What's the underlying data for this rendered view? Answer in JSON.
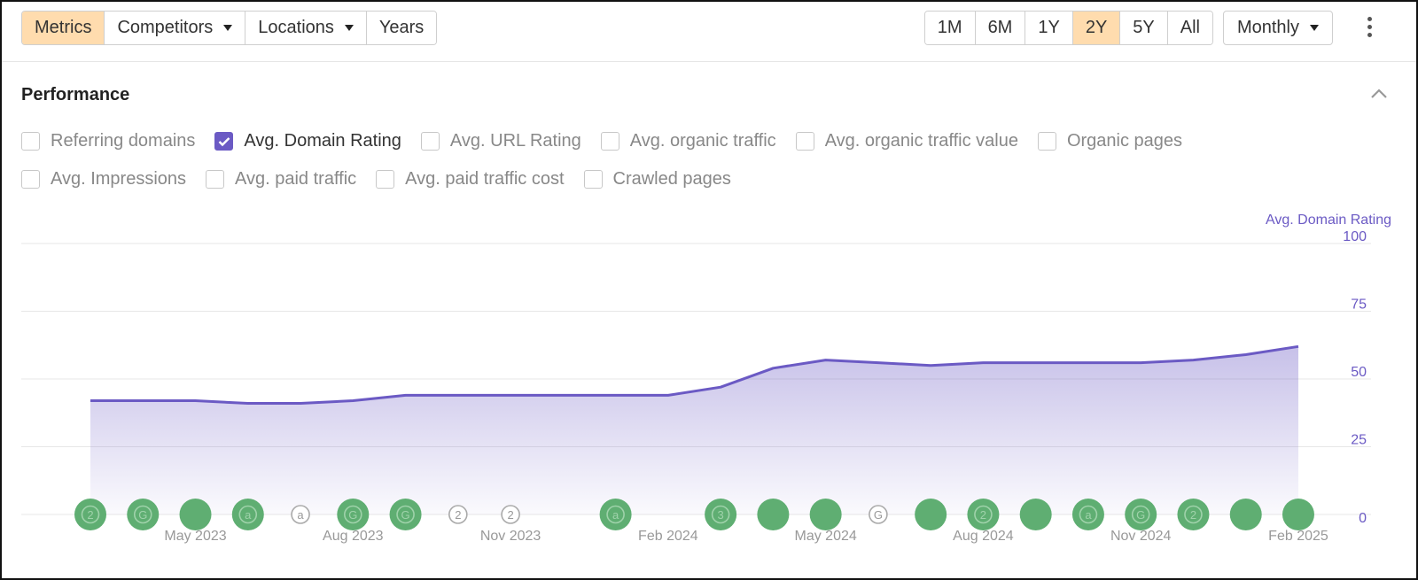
{
  "toolbar": {
    "left_buttons": [
      {
        "label": "Metrics",
        "active": true,
        "dropdown": false
      },
      {
        "label": "Competitors",
        "active": false,
        "dropdown": true
      },
      {
        "label": "Locations",
        "active": false,
        "dropdown": true
      },
      {
        "label": "Years",
        "active": false,
        "dropdown": false
      }
    ],
    "ranges": [
      {
        "label": "1M",
        "active": false
      },
      {
        "label": "6M",
        "active": false
      },
      {
        "label": "1Y",
        "active": false
      },
      {
        "label": "2Y",
        "active": true
      },
      {
        "label": "5Y",
        "active": false
      },
      {
        "label": "All",
        "active": false
      }
    ],
    "interval": "Monthly"
  },
  "section": {
    "title": "Performance"
  },
  "metrics": {
    "row1": [
      {
        "label": "Referring domains",
        "checked": false
      },
      {
        "label": "Avg. Domain Rating",
        "checked": true
      },
      {
        "label": "Avg. URL Rating",
        "checked": false
      },
      {
        "label": "Avg. organic traffic",
        "checked": false
      },
      {
        "label": "Avg. organic traffic value",
        "checked": false
      },
      {
        "label": "Organic pages",
        "checked": false
      }
    ],
    "row2": [
      {
        "label": "Avg. Impressions",
        "checked": false
      },
      {
        "label": "Avg. paid traffic",
        "checked": false
      },
      {
        "label": "Avg. paid traffic cost",
        "checked": false
      },
      {
        "label": "Crawled pages",
        "checked": false
      }
    ]
  },
  "colors": {
    "accent": "#6b5ac4",
    "active_button": "#ffdcae",
    "marker_green": "#5fae72"
  },
  "chart_data": {
    "type": "area",
    "ylabel": "Avg. Domain Rating",
    "ylim": [
      0,
      100
    ],
    "yticks": [
      0,
      25,
      50,
      75,
      100
    ],
    "x": [
      "2023-03",
      "2023-04",
      "2023-05",
      "2023-06",
      "2023-07",
      "2023-08",
      "2023-09",
      "2023-10",
      "2023-11",
      "2023-12",
      "2024-01",
      "2024-02",
      "2024-03",
      "2024-04",
      "2024-05",
      "2024-06",
      "2024-07",
      "2024-08",
      "2024-09",
      "2024-10",
      "2024-11",
      "2024-12",
      "2025-01",
      "2025-02"
    ],
    "series": [
      {
        "values": [
          42,
          42,
          42,
          41,
          41,
          42,
          44,
          44,
          44,
          44,
          44,
          44,
          47,
          54,
          57,
          56,
          55,
          56,
          56,
          56,
          56,
          57,
          59,
          62
        ]
      }
    ],
    "xtick_labels": [
      {
        "date": "2023-05",
        "label": "May 2023"
      },
      {
        "date": "2023-08",
        "label": "Aug 2023"
      },
      {
        "date": "2023-11",
        "label": "Nov 2023"
      },
      {
        "date": "2024-02",
        "label": "Feb 2024"
      },
      {
        "date": "2024-05",
        "label": "May 2024"
      },
      {
        "date": "2024-08",
        "label": "Aug 2024"
      },
      {
        "date": "2024-11",
        "label": "Nov 2024"
      },
      {
        "date": "2025-02",
        "label": "Feb 2025"
      }
    ],
    "annotations": [
      {
        "date": "2023-03",
        "glyph": "2",
        "style": "filled"
      },
      {
        "date": "2023-04",
        "glyph": "G",
        "style": "filled"
      },
      {
        "date": "2023-05",
        "glyph": "",
        "style": "filled"
      },
      {
        "date": "2023-06",
        "glyph": "a",
        "style": "filled"
      },
      {
        "date": "2023-07",
        "glyph": "a",
        "style": "outline"
      },
      {
        "date": "2023-08",
        "glyph": "G",
        "style": "filled"
      },
      {
        "date": "2023-09",
        "glyph": "G",
        "style": "filled"
      },
      {
        "date": "2023-10",
        "glyph": "2",
        "style": "outline"
      },
      {
        "date": "2023-11",
        "glyph": "2",
        "style": "outline"
      },
      {
        "date": "2024-01",
        "glyph": "a",
        "style": "filled"
      },
      {
        "date": "2024-03",
        "glyph": "3",
        "style": "filled"
      },
      {
        "date": "2024-04",
        "glyph": "",
        "style": "filled"
      },
      {
        "date": "2024-05",
        "glyph": "",
        "style": "filled"
      },
      {
        "date": "2024-06",
        "glyph": "G",
        "style": "outline"
      },
      {
        "date": "2024-07",
        "glyph": "",
        "style": "filled"
      },
      {
        "date": "2024-08",
        "glyph": "2",
        "style": "filled"
      },
      {
        "date": "2024-09",
        "glyph": "",
        "style": "filled"
      },
      {
        "date": "2024-10",
        "glyph": "a",
        "style": "filled"
      },
      {
        "date": "2024-11",
        "glyph": "G",
        "style": "filled"
      },
      {
        "date": "2024-12",
        "glyph": "2",
        "style": "filled"
      },
      {
        "date": "2025-01",
        "glyph": "",
        "style": "filled"
      },
      {
        "date": "2025-02",
        "glyph": "",
        "style": "filled"
      }
    ],
    "grid": true
  }
}
